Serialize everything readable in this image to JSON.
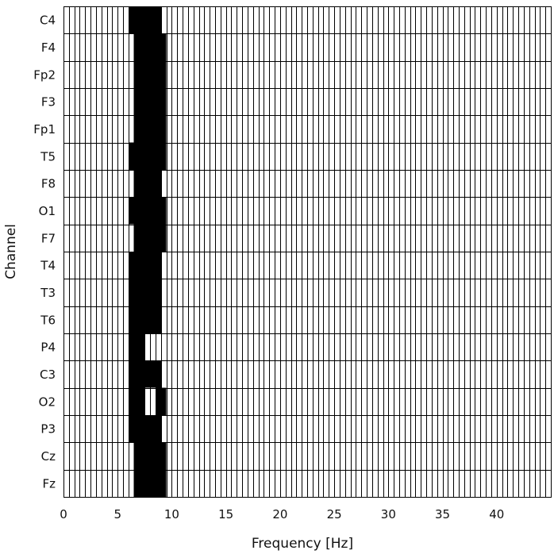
{
  "chart_data": {
    "type": "heatmap",
    "title": "",
    "xlabel": "Frequency [Hz]",
    "ylabel": "Channel",
    "xlim": [
      0,
      45
    ],
    "bin_width_hz": 0.5,
    "x_ticks": [
      0,
      5,
      10,
      15,
      20,
      25,
      30,
      35,
      40
    ],
    "grid": true,
    "colors": {
      "active": "#000000",
      "inactive": "#ffffff",
      "grid": "#000000",
      "text": "#111111"
    },
    "channels": [
      "C4",
      "F4",
      "Fp2",
      "F3",
      "Fp1",
      "T5",
      "F8",
      "O1",
      "F7",
      "T4",
      "T3",
      "T6",
      "P4",
      "C3",
      "O2",
      "P3",
      "Cz",
      "Fz"
    ],
    "active_ranges_hz": [
      {
        "channel": "C4",
        "ranges": [
          [
            6.0,
            9.0
          ]
        ]
      },
      {
        "channel": "F4",
        "ranges": [
          [
            6.5,
            9.5
          ]
        ]
      },
      {
        "channel": "Fp2",
        "ranges": [
          [
            6.5,
            9.5
          ]
        ]
      },
      {
        "channel": "F3",
        "ranges": [
          [
            6.5,
            9.5
          ]
        ]
      },
      {
        "channel": "Fp1",
        "ranges": [
          [
            6.5,
            9.5
          ]
        ]
      },
      {
        "channel": "T5",
        "ranges": [
          [
            6.0,
            9.5
          ]
        ]
      },
      {
        "channel": "F8",
        "ranges": [
          [
            6.5,
            9.0
          ]
        ]
      },
      {
        "channel": "O1",
        "ranges": [
          [
            6.0,
            9.5
          ]
        ]
      },
      {
        "channel": "F7",
        "ranges": [
          [
            6.5,
            9.5
          ]
        ]
      },
      {
        "channel": "T4",
        "ranges": [
          [
            6.0,
            9.0
          ]
        ]
      },
      {
        "channel": "T3",
        "ranges": [
          [
            6.0,
            9.0
          ]
        ]
      },
      {
        "channel": "T6",
        "ranges": [
          [
            6.0,
            9.0
          ]
        ]
      },
      {
        "channel": "P4",
        "ranges": [
          [
            6.0,
            7.5
          ]
        ]
      },
      {
        "channel": "C3",
        "ranges": [
          [
            6.0,
            9.0
          ]
        ]
      },
      {
        "channel": "O2",
        "ranges": [
          [
            6.0,
            7.5
          ],
          [
            8.5,
            9.5
          ]
        ]
      },
      {
        "channel": "P3",
        "ranges": [
          [
            6.0,
            9.0
          ]
        ]
      },
      {
        "channel": "Cz",
        "ranges": [
          [
            6.5,
            9.5
          ]
        ]
      },
      {
        "channel": "Fz",
        "ranges": [
          [
            6.5,
            9.5
          ]
        ]
      }
    ]
  }
}
